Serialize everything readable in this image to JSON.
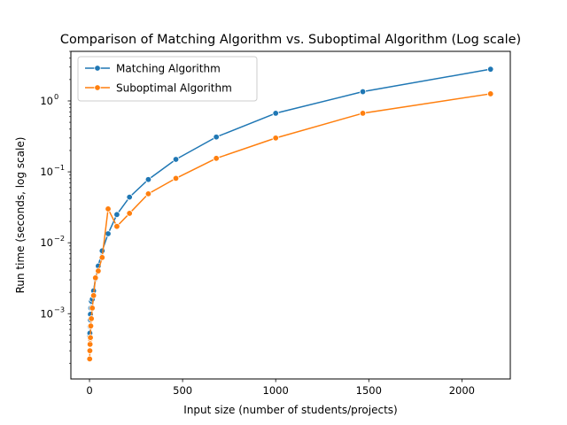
{
  "chart_data": {
    "type": "line",
    "title": "Comparison of Matching Algorithm vs. Suboptimal Algorithm (Log scale)",
    "xlabel": "Input size (number of students/projects)",
    "ylabel": "Run time (seconds, log scale)",
    "xlim": [
      -100,
      2260
    ],
    "ylim": [
      0.00012,
      5
    ],
    "yscale": "log",
    "xticks": [
      0,
      500,
      1000,
      1500,
      2000
    ],
    "yticks": [
      0.001,
      0.01,
      0.1,
      1
    ],
    "ytick_labels": [
      {
        "base": "10",
        "exp": "−3"
      },
      {
        "base": "10",
        "exp": "−2"
      },
      {
        "base": "10",
        "exp": "−1"
      },
      {
        "base": "10",
        "exp": "0"
      }
    ],
    "grid": false,
    "legend": "top-left",
    "series": [
      {
        "name": "Matching Algorithm",
        "color": "#1f77b4",
        "x": [
          1,
          2,
          3,
          4,
          5,
          7,
          10,
          15,
          22,
          32,
          47,
          68,
          100,
          147,
          215,
          316,
          464,
          681,
          1000,
          1468,
          2154
        ],
        "y": [
          0.00048,
          0.00053,
          0.00066,
          0.00082,
          0.00098,
          0.0012,
          0.0015,
          0.0016,
          0.0021,
          0.0031,
          0.0047,
          0.0077,
          0.0134,
          0.025,
          0.044,
          0.078,
          0.15,
          0.31,
          0.67,
          1.35,
          2.8
        ]
      },
      {
        "name": "Suboptimal Algorithm",
        "color": "#ff7f0e",
        "x": [
          1,
          2,
          3,
          4,
          5,
          7,
          10,
          15,
          22,
          32,
          47,
          68,
          100,
          147,
          215,
          316,
          464,
          681,
          1000,
          1468,
          2154
        ],
        "y": [
          0.00023,
          0.0003,
          0.00037,
          0.00044,
          0.00046,
          0.00067,
          0.00085,
          0.0012,
          0.0018,
          0.0032,
          0.004,
          0.0062,
          0.03,
          0.017,
          0.026,
          0.049,
          0.081,
          0.155,
          0.3,
          0.67,
          1.26
        ]
      }
    ]
  }
}
